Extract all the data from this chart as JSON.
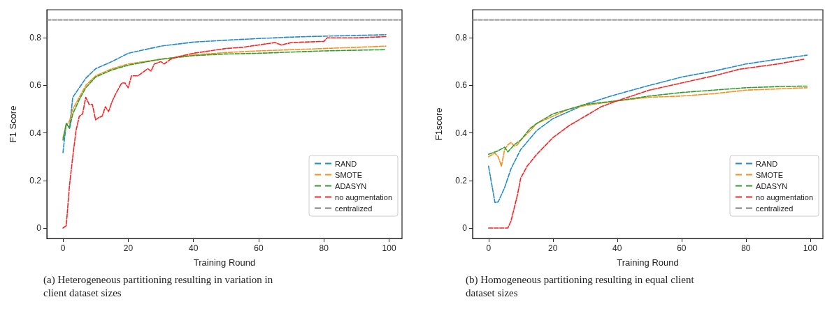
{
  "chart_data": [
    {
      "type": "line",
      "xlabel": "Training Round",
      "ylabel": "F1 Score",
      "xlim": [
        -4.95,
        103.95
      ],
      "ylim": [
        -0.044,
        0.918
      ],
      "xticks": [
        0,
        20,
        40,
        60,
        80,
        100
      ],
      "yticks": [
        0.0,
        0.2,
        0.4,
        0.6,
        0.8
      ],
      "grid": false,
      "legend": "bottom right",
      "marker": "none",
      "line_style": "dashed",
      "annotations": [
        "(a) Heterogeneous partitioning resulting in variation in client dataset sizes"
      ],
      "series": [
        {
          "name": "RAND",
          "color": "#1f8ad0",
          "x": [
            0,
            1,
            2,
            3,
            5,
            7,
            10,
            15,
            20,
            30,
            40,
            50,
            60,
            70,
            80,
            90,
            99
          ],
          "values": [
            0.317,
            0.44,
            0.42,
            0.55,
            0.59,
            0.63,
            0.67,
            0.7,
            0.735,
            0.765,
            0.782,
            0.79,
            0.797,
            0.803,
            0.807,
            0.81,
            0.813
          ]
        },
        {
          "name": "SMOTE",
          "color": "#ff8c1a",
          "x": [
            0,
            1,
            2,
            3,
            5,
            7,
            10,
            15,
            20,
            30,
            40,
            50,
            60,
            70,
            80,
            90,
            99
          ],
          "values": [
            0.38,
            0.43,
            0.45,
            0.5,
            0.55,
            0.6,
            0.64,
            0.67,
            0.69,
            0.71,
            0.728,
            0.738,
            0.745,
            0.75,
            0.755,
            0.76,
            0.765
          ]
        },
        {
          "name": "ADASYN",
          "color": "#2ca02c",
          "x": [
            0,
            1,
            2,
            3,
            5,
            7,
            10,
            15,
            20,
            30,
            40,
            50,
            60,
            70,
            80,
            90,
            99
          ],
          "values": [
            0.37,
            0.44,
            0.42,
            0.48,
            0.54,
            0.59,
            0.635,
            0.665,
            0.685,
            0.71,
            0.725,
            0.732,
            0.735,
            0.74,
            0.745,
            0.748,
            0.75
          ]
        },
        {
          "name": "no augmentation",
          "color": "#ff2020",
          "x": [
            0,
            1,
            2,
            3,
            4,
            5,
            6,
            7,
            8,
            9,
            10,
            11,
            12,
            13,
            14,
            15,
            16,
            18,
            19,
            20,
            21,
            23,
            25,
            26,
            27,
            28,
            30,
            31,
            33,
            35,
            40,
            45,
            50,
            55,
            60,
            65,
            67,
            70,
            80,
            81,
            90,
            99
          ],
          "values": [
            0.0,
            0.01,
            0.18,
            0.3,
            0.41,
            0.47,
            0.48,
            0.55,
            0.52,
            0.52,
            0.455,
            0.465,
            0.47,
            0.51,
            0.49,
            0.53,
            0.56,
            0.61,
            0.61,
            0.59,
            0.64,
            0.64,
            0.66,
            0.67,
            0.66,
            0.69,
            0.7,
            0.69,
            0.71,
            0.72,
            0.735,
            0.745,
            0.755,
            0.76,
            0.77,
            0.78,
            0.77,
            0.78,
            0.785,
            0.8,
            0.8,
            0.805
          ]
        },
        {
          "name": "centralized",
          "color": "#808080",
          "x": [
            -4.95,
            103.95
          ],
          "values": [
            0.875,
            0.875
          ]
        }
      ]
    },
    {
      "type": "line",
      "xlabel": "Training Round",
      "ylabel": "F1score",
      "xlim": [
        -4.95,
        103.95
      ],
      "ylim": [
        -0.044,
        0.918
      ],
      "xticks": [
        0,
        20,
        40,
        60,
        80,
        100
      ],
      "yticks": [
        0.0,
        0.2,
        0.4,
        0.6,
        0.8
      ],
      "grid": false,
      "legend": "bottom right",
      "marker": "none",
      "line_style": "dashed",
      "annotations": [
        "(b) Homogeneous partitioning resulting in equal client dataset sizes"
      ],
      "series": [
        {
          "name": "RAND",
          "color": "#1f8ad0",
          "x": [
            0,
            2,
            3,
            5,
            7,
            10,
            15,
            20,
            30,
            38,
            50,
            60,
            70,
            80,
            90,
            99
          ],
          "values": [
            0.26,
            0.107,
            0.11,
            0.17,
            0.25,
            0.33,
            0.41,
            0.46,
            0.52,
            0.555,
            0.6,
            0.635,
            0.66,
            0.69,
            0.71,
            0.727
          ]
        },
        {
          "name": "SMOTE",
          "color": "#ff8c1a",
          "x": [
            0,
            2,
            3,
            4,
            5,
            6,
            7,
            8,
            9,
            10,
            13,
            15,
            20,
            25,
            30,
            35,
            40,
            50,
            60,
            70,
            80,
            90,
            99
          ],
          "values": [
            0.3,
            0.315,
            0.3,
            0.26,
            0.33,
            0.35,
            0.36,
            0.345,
            0.35,
            0.37,
            0.41,
            0.44,
            0.47,
            0.5,
            0.515,
            0.525,
            0.535,
            0.55,
            0.555,
            0.565,
            0.58,
            0.585,
            0.59
          ]
        },
        {
          "name": "ADASYN",
          "color": "#2ca02c",
          "x": [
            0,
            3,
            5,
            6,
            8,
            10,
            13,
            15,
            20,
            25,
            30,
            40,
            50,
            60,
            70,
            80,
            90,
            99
          ],
          "values": [
            0.31,
            0.325,
            0.34,
            0.32,
            0.35,
            0.37,
            0.42,
            0.44,
            0.48,
            0.5,
            0.52,
            0.535,
            0.555,
            0.57,
            0.58,
            0.59,
            0.595,
            0.597
          ]
        },
        {
          "name": "no augmentation",
          "color": "#ff2020",
          "x": [
            0,
            6,
            7,
            9,
            10,
            12,
            15,
            20,
            25,
            30,
            35,
            40,
            50,
            60,
            70,
            78,
            90,
            98
          ],
          "values": [
            0.0,
            0.0,
            0.03,
            0.14,
            0.21,
            0.26,
            0.31,
            0.38,
            0.43,
            0.47,
            0.51,
            0.535,
            0.58,
            0.61,
            0.64,
            0.668,
            0.69,
            0.71
          ]
        },
        {
          "name": "centralized",
          "color": "#808080",
          "x": [
            -4.95,
            103.95
          ],
          "values": [
            0.875,
            0.875
          ]
        }
      ]
    }
  ]
}
